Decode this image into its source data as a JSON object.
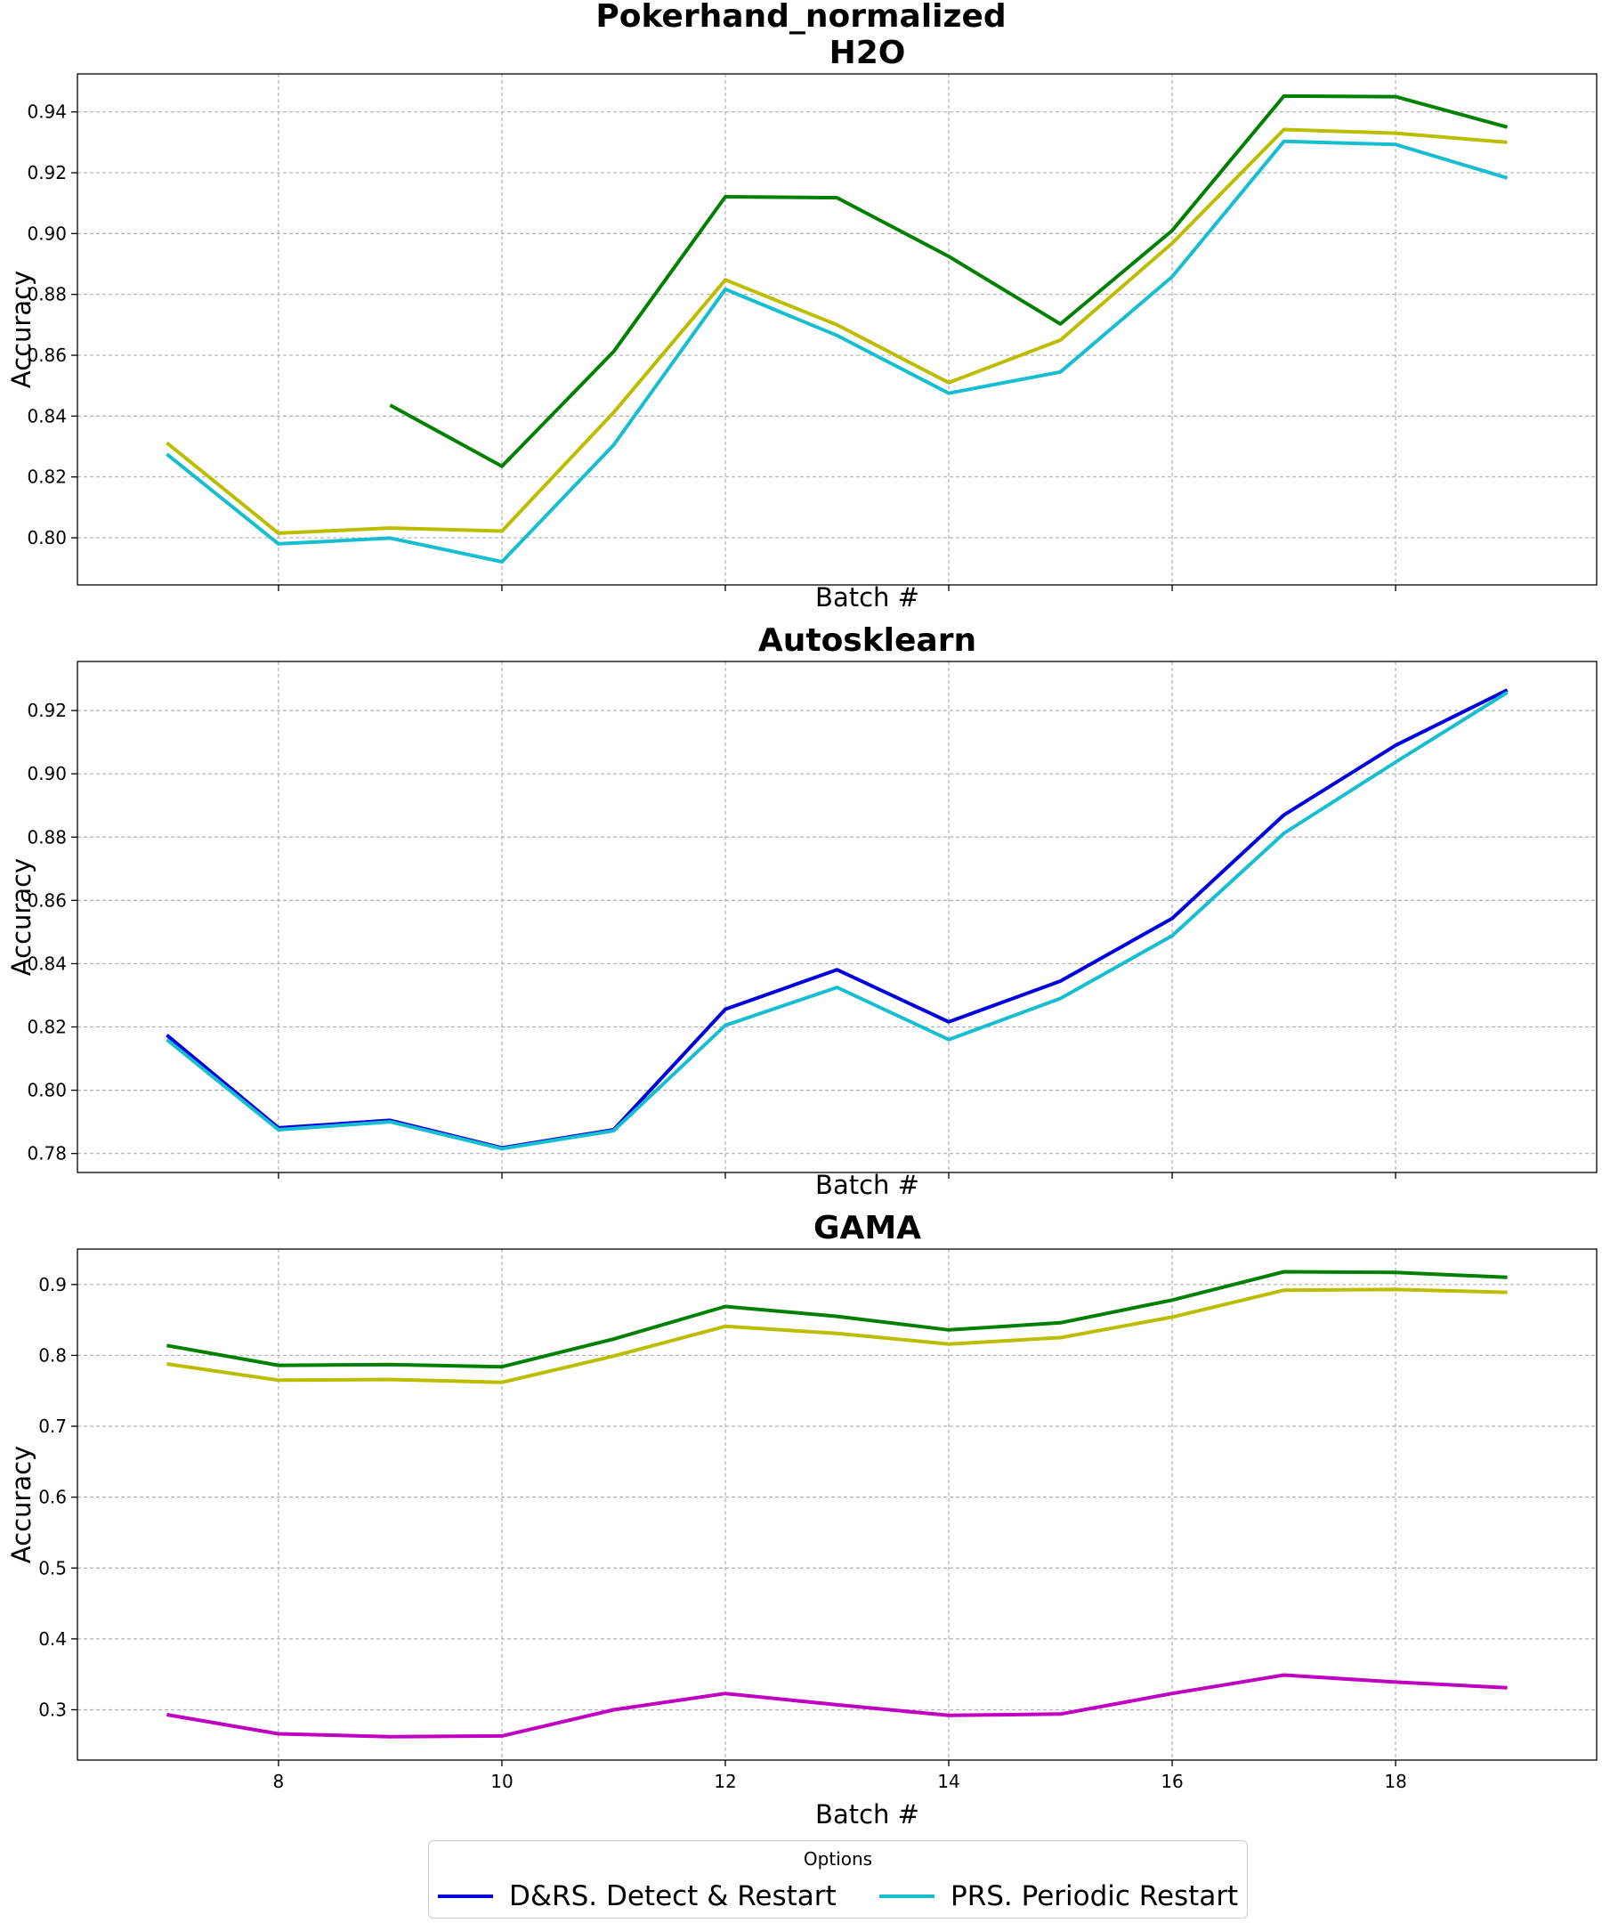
{
  "suptitle": "Pokerhand_normalized",
  "legend": {
    "title": "Options",
    "items": [
      {
        "label": "D&RS. Detect & Restart",
        "color": "#0000dd"
      },
      {
        "label": "PRS. Periodic Restart",
        "color": "#17becf"
      }
    ]
  },
  "chart_data": [
    {
      "type": "line",
      "title": "H2O",
      "xlabel": "Batch #",
      "ylabel": "Accuracy",
      "xlim": [
        6.2,
        19.8
      ],
      "ylim": [
        0.7845,
        0.9525
      ],
      "xticks": [
        8,
        10,
        12,
        14,
        16,
        18
      ],
      "show_xtick_labels": false,
      "yticks": [
        0.8,
        0.82,
        0.84,
        0.86,
        0.88,
        0.9,
        0.92,
        0.94
      ],
      "ytick_labels": [
        "0.80",
        "0.82",
        "0.84",
        "0.86",
        "0.88",
        "0.90",
        "0.92",
        "0.94"
      ],
      "grid": true,
      "series": [
        {
          "color": "#008000",
          "x": [
            9,
            10,
            11,
            12,
            13,
            14,
            15,
            16,
            17,
            18,
            19
          ],
          "y": [
            0.8436,
            0.8235,
            0.8612,
            0.9121,
            0.9118,
            0.8925,
            0.8703,
            0.901,
            0.9452,
            0.945,
            0.935
          ]
        },
        {
          "color": "#bcbd00",
          "x": [
            7,
            8,
            9,
            10,
            11,
            12,
            13,
            14,
            15,
            16,
            17,
            18,
            19
          ],
          "y": [
            0.8312,
            0.8015,
            0.8032,
            0.8022,
            0.8412,
            0.8848,
            0.87,
            0.851,
            0.865,
            0.8968,
            0.9342,
            0.933,
            0.93
          ]
        },
        {
          "color": "#17becf",
          "x": [
            7,
            8,
            9,
            10,
            11,
            12,
            13,
            14,
            15,
            16,
            17,
            18,
            19
          ],
          "y": [
            0.8275,
            0.798,
            0.7999,
            0.7921,
            0.8305,
            0.8817,
            0.8665,
            0.8475,
            0.8545,
            0.8858,
            0.9303,
            0.9293,
            0.9183
          ]
        }
      ]
    },
    {
      "type": "line",
      "title": "Autosklearn",
      "xlabel": "Batch #",
      "ylabel": "Accuracy",
      "xlim": [
        6.2,
        19.8
      ],
      "ylim": [
        0.774,
        0.9355
      ],
      "xticks": [
        8,
        10,
        12,
        14,
        16,
        18
      ],
      "show_xtick_labels": false,
      "yticks": [
        0.78,
        0.8,
        0.82,
        0.84,
        0.86,
        0.88,
        0.9,
        0.92
      ],
      "ytick_labels": [
        "0.78",
        "0.80",
        "0.82",
        "0.84",
        "0.86",
        "0.88",
        "0.90",
        "0.92"
      ],
      "grid": true,
      "series": [
        {
          "color": "#0000dd",
          "x": [
            7,
            8,
            9,
            10,
            11,
            12,
            13,
            14,
            15,
            16,
            17,
            18,
            19
          ],
          "y": [
            0.8174,
            0.7881,
            0.7905,
            0.7818,
            0.7875,
            0.8256,
            0.8381,
            0.8216,
            0.8345,
            0.8543,
            0.887,
            0.909,
            0.9265
          ]
        },
        {
          "color": "#17becf",
          "x": [
            7,
            8,
            9,
            10,
            11,
            12,
            13,
            14,
            15,
            16,
            17,
            18,
            19
          ],
          "y": [
            0.816,
            0.7875,
            0.79,
            0.7815,
            0.7872,
            0.8205,
            0.8325,
            0.816,
            0.829,
            0.8488,
            0.8812,
            0.9037,
            0.9257
          ]
        }
      ]
    },
    {
      "type": "line",
      "title": "GAMA",
      "xlabel": "Batch #",
      "ylabel": "Accuracy",
      "xlim": [
        6.2,
        19.8
      ],
      "ylim": [
        0.229,
        0.95
      ],
      "xticks": [
        8,
        10,
        12,
        14,
        16,
        18
      ],
      "xtick_labels": [
        "8",
        "10",
        "12",
        "14",
        "16",
        "18"
      ],
      "show_xtick_labels": true,
      "yticks": [
        0.3,
        0.4,
        0.5,
        0.6,
        0.7,
        0.8,
        0.9
      ],
      "ytick_labels": [
        "0.3",
        "0.4",
        "0.5",
        "0.6",
        "0.7",
        "0.8",
        "0.9"
      ],
      "grid": true,
      "series": [
        {
          "color": "#008000",
          "x": [
            7,
            8,
            9,
            10,
            11,
            12,
            13,
            14,
            15,
            16,
            17,
            18,
            19
          ],
          "y": [
            0.814,
            0.786,
            0.787,
            0.784,
            0.823,
            0.869,
            0.855,
            0.836,
            0.846,
            0.878,
            0.918,
            0.917,
            0.91
          ]
        },
        {
          "color": "#bcbd00",
          "x": [
            7,
            8,
            9,
            10,
            11,
            12,
            13,
            14,
            15,
            16,
            17,
            18,
            19
          ],
          "y": [
            0.788,
            0.765,
            0.766,
            0.762,
            0.799,
            0.841,
            0.831,
            0.816,
            0.825,
            0.854,
            0.892,
            0.893,
            0.889
          ]
        },
        {
          "color": "#c000c0",
          "x": [
            7,
            8,
            9,
            10,
            11,
            12,
            13,
            14,
            15,
            16,
            17,
            18,
            19
          ],
          "y": [
            0.293,
            0.266,
            0.262,
            0.263,
            0.3,
            0.323,
            0.307,
            0.292,
            0.294,
            0.323,
            0.349,
            0.339,
            0.331
          ]
        }
      ]
    }
  ]
}
